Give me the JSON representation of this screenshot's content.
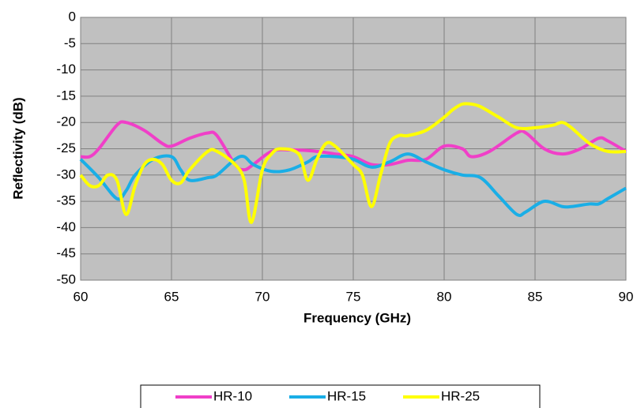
{
  "chart_data": {
    "type": "line",
    "xlabel": "Frequency (GHz)",
    "ylabel": "Reflectivity (dB)",
    "xlim": [
      60,
      90
    ],
    "xticks": [
      60,
      65,
      70,
      75,
      80,
      85,
      90
    ],
    "ylim": [
      -50,
      0
    ],
    "yticks": [
      0,
      -5,
      -10,
      -15,
      -20,
      -25,
      -30,
      -35,
      -40,
      -45,
      -50
    ],
    "grid": true,
    "legend": "bottom",
    "series": [
      {
        "name": "HR-10",
        "color": "#f03fc8",
        "x": [
          60,
          60.5,
          61,
          62,
          62.5,
          63.5,
          64.5,
          65,
          66,
          67,
          67.5,
          68.5,
          69,
          69.5,
          70.5,
          71.5,
          73,
          74,
          75,
          76,
          77,
          78,
          79,
          80,
          81,
          81.5,
          82.5,
          84,
          84.5,
          85.5,
          86.5,
          87.5,
          88.5,
          89,
          90
        ],
        "values": [
          -26.5,
          -26.5,
          -25,
          -20.5,
          -20,
          -21.5,
          -24,
          -24.5,
          -23,
          -22,
          -22.5,
          -28,
          -29,
          -28,
          -25.5,
          -25.2,
          -25.5,
          -26,
          -26.5,
          -28,
          -28,
          -27.2,
          -27,
          -24.5,
          -25,
          -26.5,
          -25.5,
          -22,
          -22,
          -25,
          -26,
          -25,
          -23,
          -23.5,
          -25.5
        ]
      },
      {
        "name": "HR-15",
        "color": "#1aaee6",
        "x": [
          60,
          61,
          62,
          62.5,
          63,
          64,
          65,
          65.5,
          66,
          67,
          67.5,
          68.5,
          69,
          69.5,
          70.5,
          71.5,
          72.5,
          73,
          74,
          75,
          76,
          77,
          78,
          79,
          80,
          81,
          82,
          83,
          84,
          84.5,
          85.5,
          86.5,
          87,
          88,
          88.5,
          89,
          90
        ],
        "values": [
          -27,
          -30.5,
          -34.5,
          -33,
          -30,
          -27,
          -26.5,
          -29,
          -31,
          -30.5,
          -30,
          -27,
          -26.5,
          -28,
          -29.3,
          -29,
          -27.5,
          -26.5,
          -26.5,
          -27,
          -28.5,
          -27.5,
          -26,
          -27.5,
          -29,
          -30,
          -30.5,
          -34,
          -37.5,
          -37,
          -35,
          -36,
          -36,
          -35.5,
          -35.5,
          -34.5,
          -32.5
        ]
      },
      {
        "name": "HR-25",
        "color": "#ffff00",
        "x": [
          60,
          60.5,
          61,
          61.5,
          62,
          62.5,
          63,
          63.5,
          64,
          64.5,
          65,
          65.5,
          66,
          67,
          67.5,
          68.5,
          69,
          69.4,
          70,
          70.5,
          71,
          72,
          72.5,
          73,
          73.5,
          74,
          75,
          75.5,
          76,
          76.5,
          77,
          77.5,
          78,
          79,
          80,
          80.5,
          81,
          81.5,
          82,
          83,
          84,
          85,
          86,
          86.5,
          87,
          88,
          89,
          90
        ],
        "values": [
          -30,
          -32,
          -32,
          -30,
          -31,
          -37.5,
          -32,
          -28,
          -27,
          -28,
          -31,
          -31.5,
          -29,
          -25.5,
          -25.5,
          -28,
          -31,
          -39,
          -29,
          -26,
          -25,
          -26,
          -31,
          -27,
          -24,
          -24.5,
          -28,
          -30,
          -36,
          -30,
          -24,
          -22.5,
          -22.5,
          -21.5,
          -19,
          -17.5,
          -16.5,
          -16.5,
          -17,
          -19,
          -21,
          -21,
          -20.5,
          -20,
          -21,
          -24,
          -25.5,
          -25.5
        ]
      }
    ]
  }
}
